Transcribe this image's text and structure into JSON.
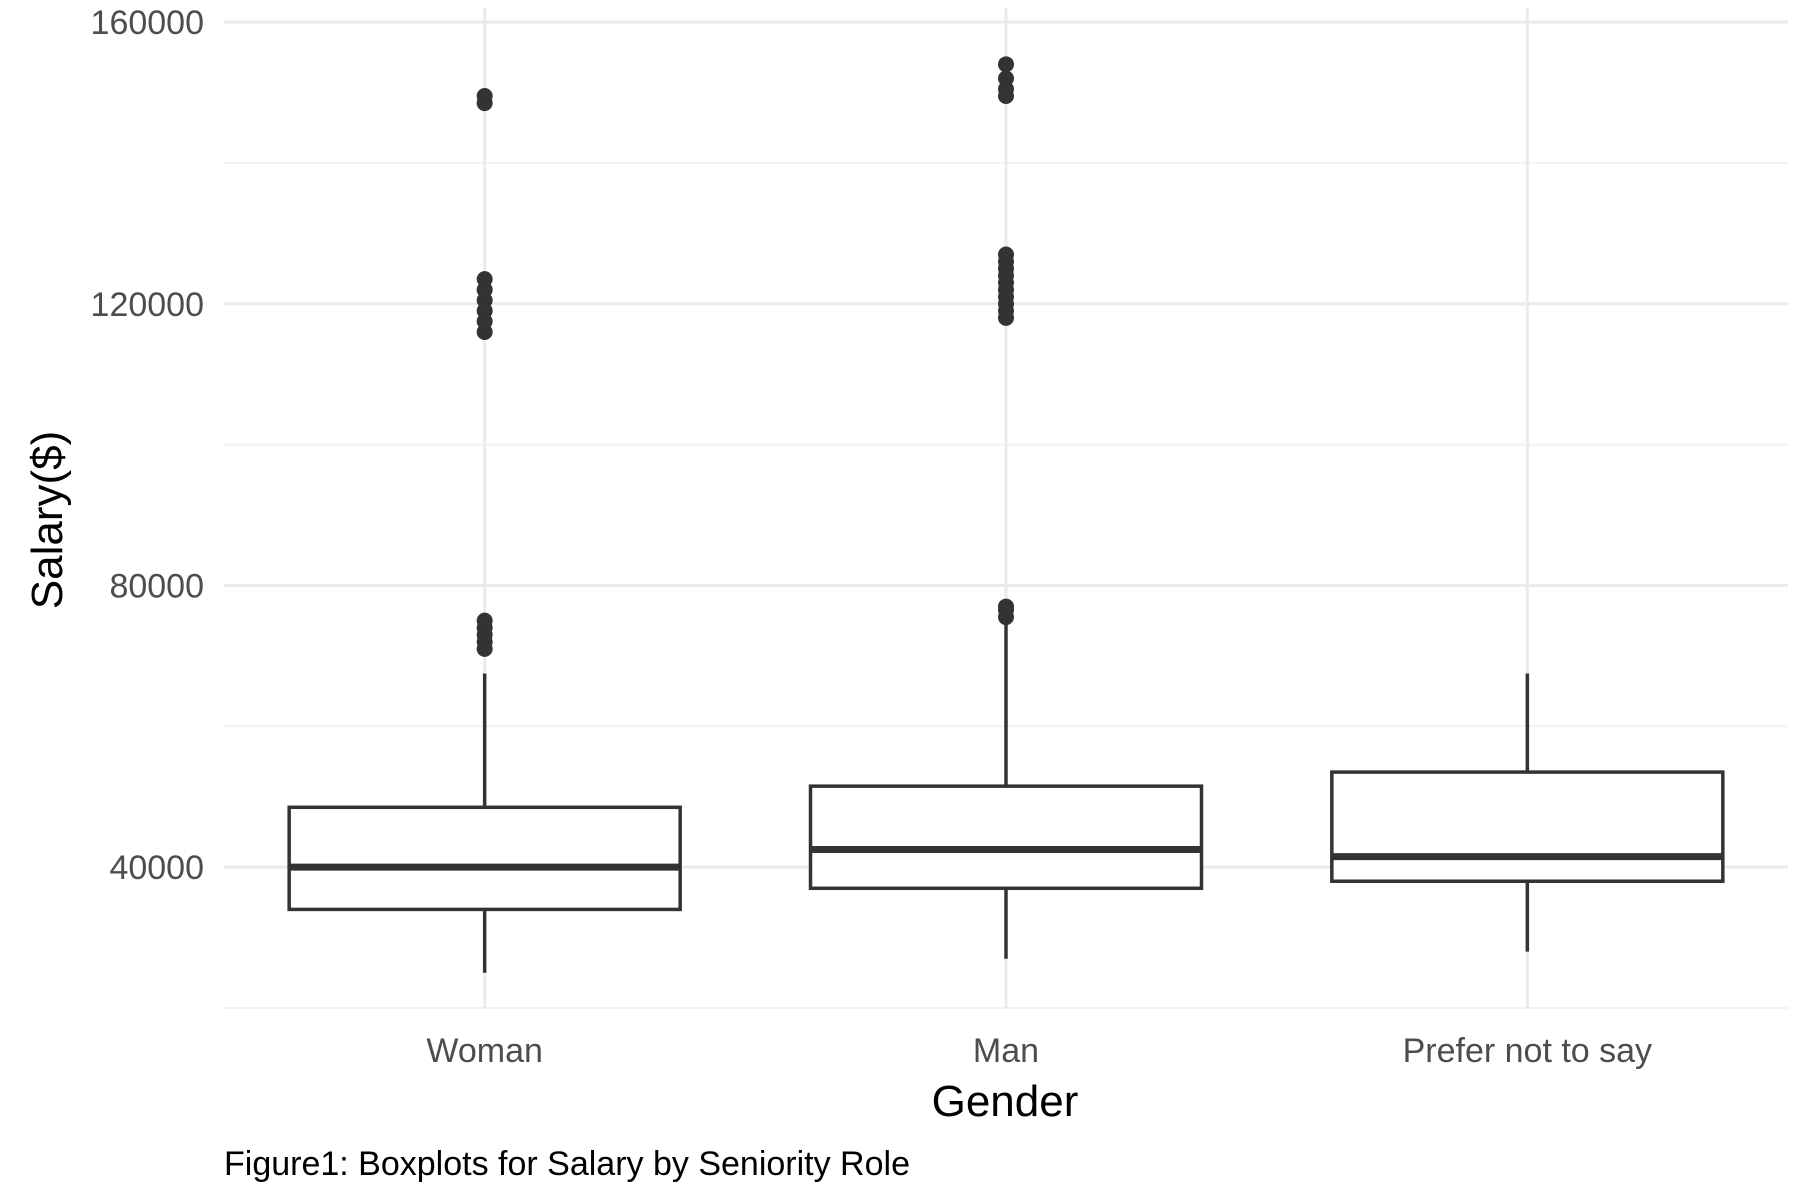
{
  "chart_data": {
    "type": "boxplot",
    "title": "",
    "caption": "Figure1: Boxplots for Salary by Seniority Role",
    "xlabel": "Gender",
    "ylabel": "Salary($)",
    "ylim": [
      20000,
      162000
    ],
    "y_ticks": [
      40000,
      80000,
      120000,
      160000
    ],
    "y_tick_labels": [
      "40000",
      "80000",
      "120000",
      "160000"
    ],
    "y_minor_ticks": [
      20000,
      60000,
      100000,
      140000
    ],
    "grid": true,
    "legend": "none",
    "categories": [
      "Woman",
      "Man",
      "Prefer not to say"
    ],
    "boxes": [
      {
        "category": "Woman",
        "whisker_low": 25000,
        "q1": 34000,
        "median": 40000,
        "q3": 48500,
        "whisker_high": 67500,
        "outliers": [
          71000,
          72000,
          73000,
          74000,
          75000,
          116000,
          117500,
          119000,
          120500,
          122000,
          123500,
          148500,
          149500
        ]
      },
      {
        "category": "Man",
        "whisker_low": 27000,
        "q1": 37000,
        "median": 42500,
        "q3": 51500,
        "whisker_high": 74500,
        "outliers": [
          75500,
          76500,
          77000,
          118000,
          119000,
          120000,
          121000,
          122000,
          123000,
          124000,
          125000,
          126000,
          127000,
          149500,
          150500,
          152000,
          154000
        ]
      },
      {
        "category": "Prefer not to say",
        "whisker_low": 28000,
        "q1": 38000,
        "median": 41500,
        "q3": 53500,
        "whisker_high": 67500,
        "outliers": []
      }
    ],
    "colors": {
      "box_stroke": "#333333",
      "outlier": "#333333",
      "grid_major": "#ebebeb",
      "grid_minor": "#f2f2f2"
    }
  }
}
